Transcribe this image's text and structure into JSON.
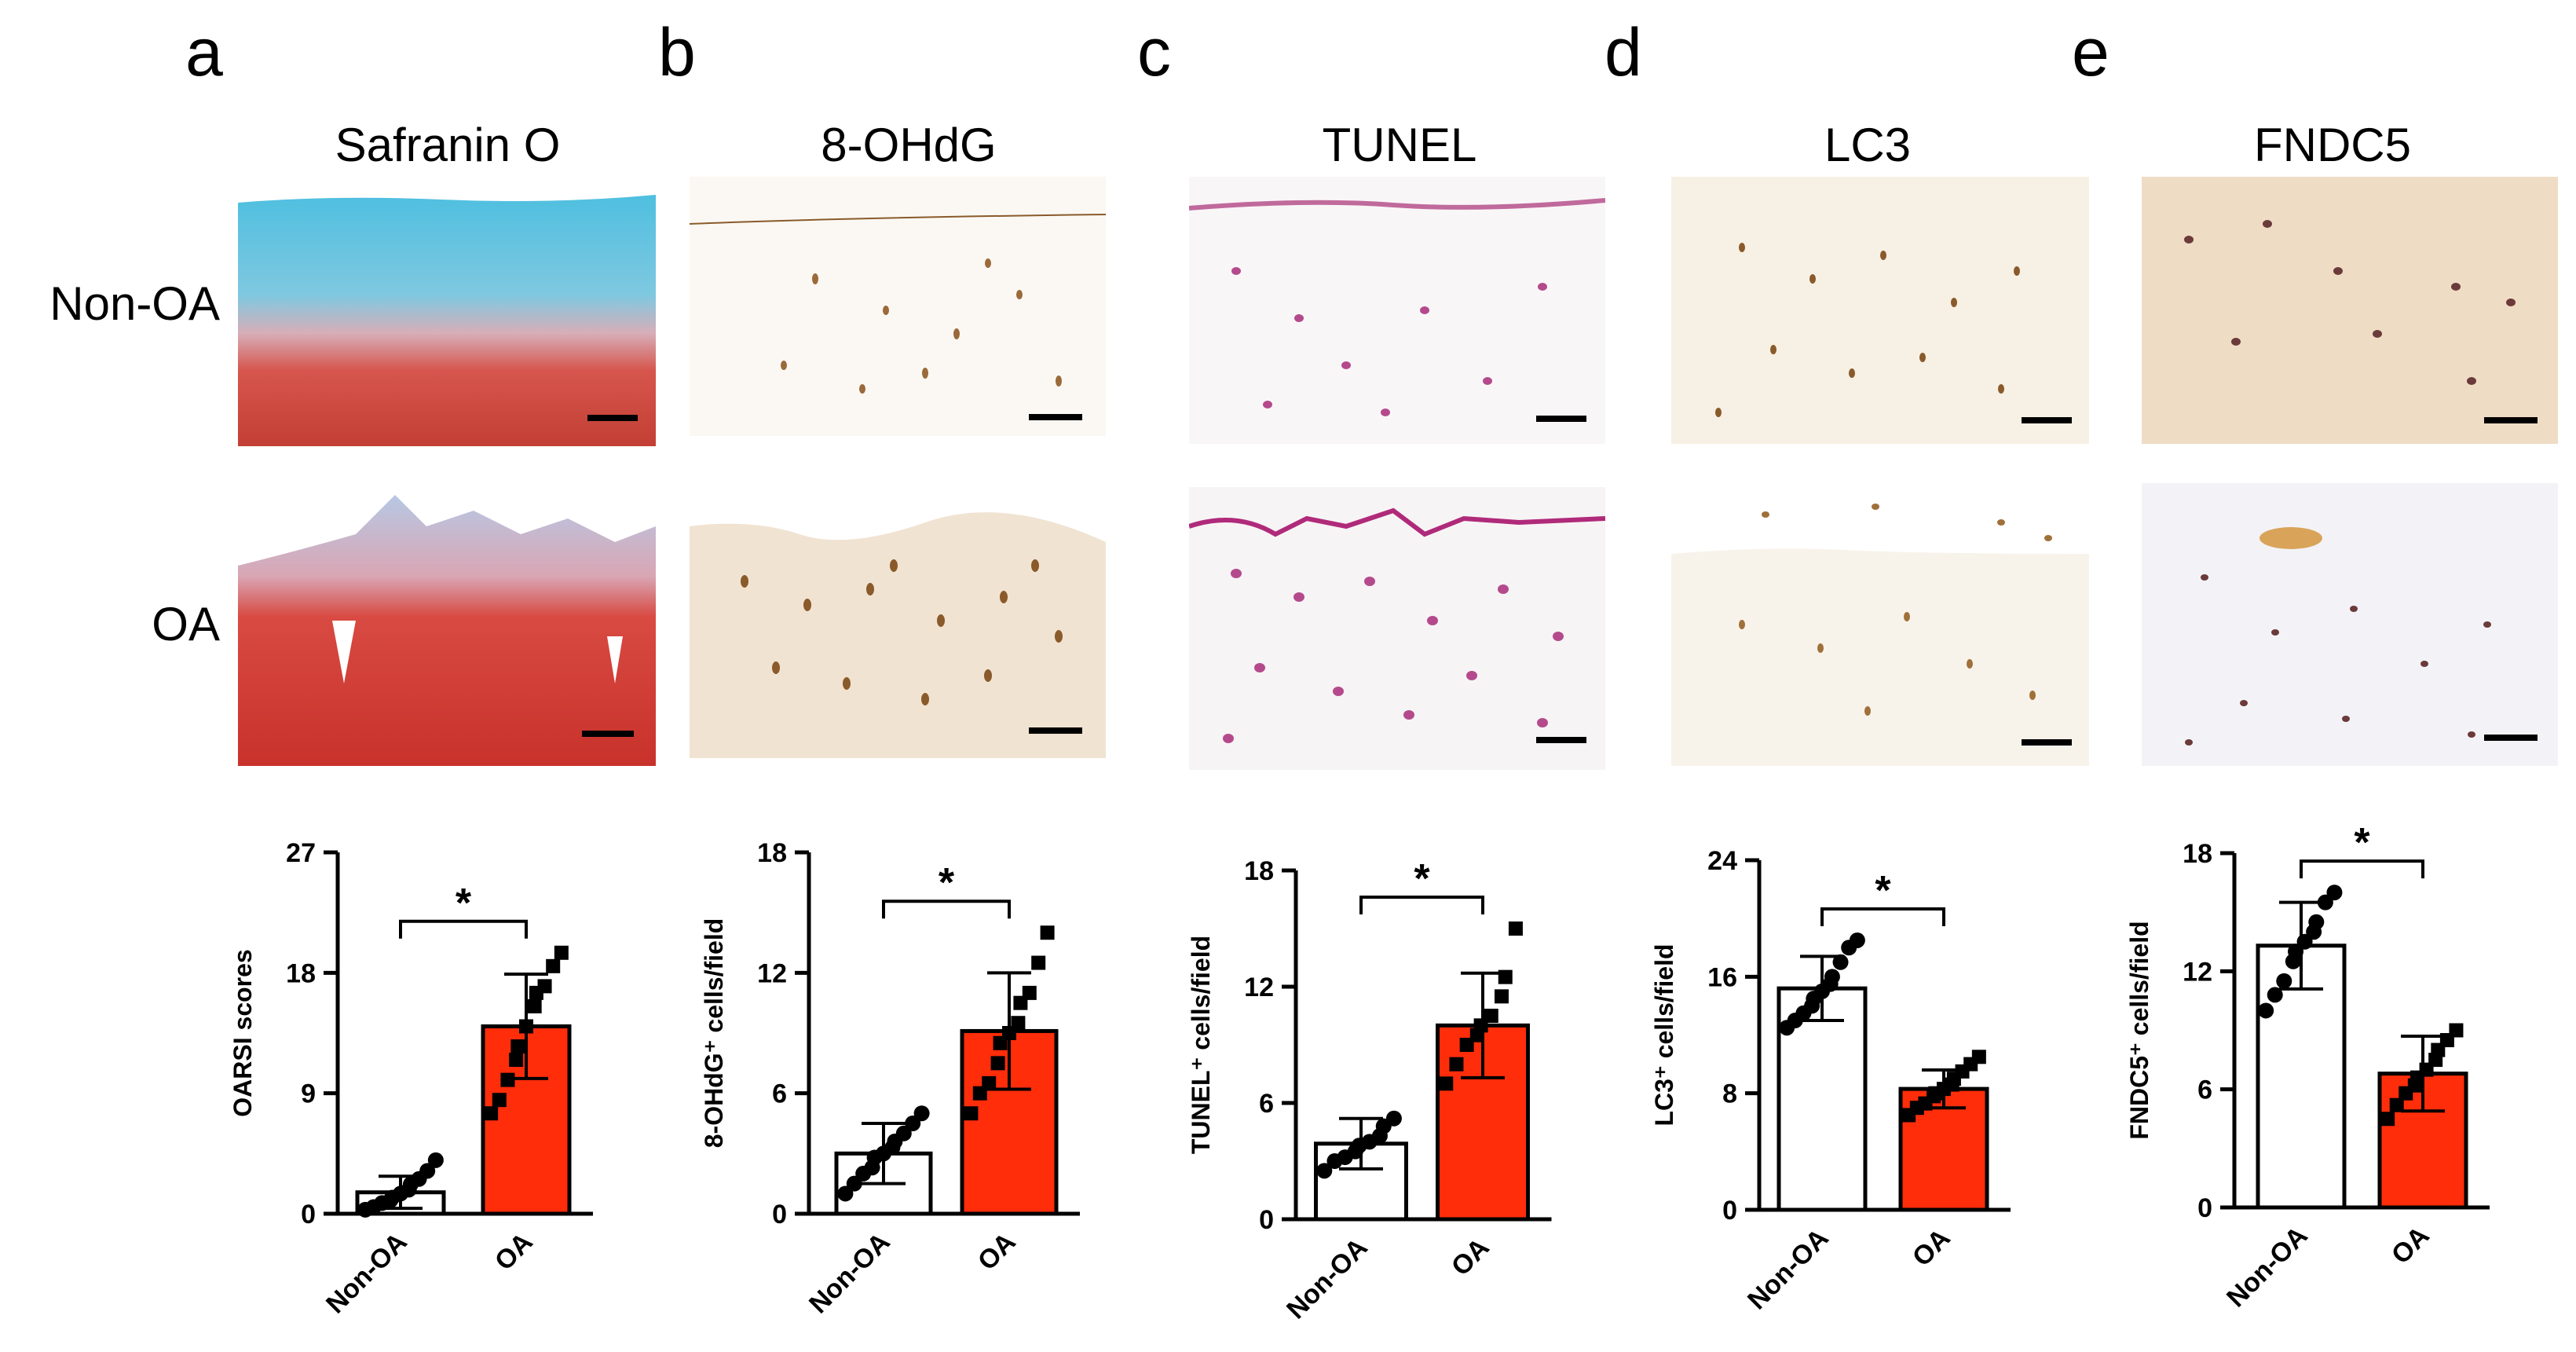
{
  "panels": [
    {
      "letter": "a",
      "stain": "Safranin O"
    },
    {
      "letter": "b",
      "stain": "8-OHdG"
    },
    {
      "letter": "c",
      "stain": "TUNEL"
    },
    {
      "letter": "d",
      "stain": "LC3"
    },
    {
      "letter": "e",
      "stain": "FNDC5"
    }
  ],
  "row_labels": {
    "top": "Non-OA",
    "bottom": "OA"
  },
  "micrograph_colors": {
    "safranin_top": "#5cc4e0",
    "safranin_red": "#c8423a",
    "ihc_background": "#f6f1ea",
    "ihc_cell": "#8a5a2b",
    "tunel_cell": "#b44a8c",
    "scale_bar": "#000000"
  },
  "colors": {
    "non_oa_bar": "#ffffff",
    "oa_bar": "#ff2d0a",
    "point": "#000000"
  },
  "chart_data": [
    {
      "type": "bar",
      "panel": "a",
      "categories": [
        "Non-OA",
        "OA"
      ],
      "values": [
        1.6,
        14.0
      ],
      "errors": [
        1.2,
        3.9
      ],
      "ylabel": "OARSI scores",
      "yticks": [
        "0",
        "9",
        "18",
        "27"
      ],
      "ylim": [
        0,
        27
      ],
      "significance": "*",
      "points": [
        [
          0.3,
          0.5,
          0.8,
          1.0,
          1.2,
          1.5,
          1.8,
          2.2,
          2.6,
          3.2,
          4.0
        ],
        [
          7.5,
          8.5,
          10.0,
          11.5,
          12.5,
          14.0,
          15.5,
          16.5,
          17.0,
          18.5,
          19.5
        ]
      ]
    },
    {
      "type": "bar",
      "panel": "b",
      "categories": [
        "Non-OA",
        "OA"
      ],
      "values": [
        3.0,
        9.1
      ],
      "errors": [
        1.5,
        2.9
      ],
      "ylabel": "8-OHdG⁺ cells/field",
      "yticks": [
        "0",
        "6",
        "12",
        "18"
      ],
      "ylim": [
        0,
        18
      ],
      "significance": "*",
      "points": [
        [
          1.0,
          1.5,
          2.0,
          2.3,
          2.8,
          3.0,
          3.3,
          3.6,
          4.0,
          4.5,
          5.0
        ],
        [
          5.0,
          6.0,
          6.5,
          7.5,
          8.5,
          9.0,
          9.5,
          10.5,
          11.0,
          12.5,
          14.0
        ]
      ]
    },
    {
      "type": "bar",
      "panel": "c",
      "categories": [
        "Non-OA",
        "OA"
      ],
      "values": [
        3.9,
        10.0
      ],
      "errors": [
        1.3,
        2.7
      ],
      "ylabel": "TUNEL⁺ cells/field",
      "yticks": [
        "0",
        "6",
        "12",
        "18"
      ],
      "ylim": [
        0,
        18
      ],
      "significance": "*",
      "points": [
        [
          2.5,
          3.0,
          3.2,
          3.5,
          3.8,
          4.0,
          4.3,
          4.8,
          5.2
        ],
        [
          7.0,
          8.0,
          9.0,
          9.5,
          10.0,
          10.5,
          11.5,
          12.5,
          15.0
        ]
      ]
    },
    {
      "type": "bar",
      "panel": "d",
      "categories": [
        "Non-OA",
        "OA"
      ],
      "values": [
        15.2,
        8.3
      ],
      "errors": [
        2.2,
        1.3
      ],
      "ylabel": "LC3⁺ cells/field",
      "yticks": [
        "0",
        "8",
        "16",
        "24"
      ],
      "ylim": [
        0,
        24
      ],
      "significance": "*",
      "points": [
        [
          12.5,
          13.0,
          13.5,
          14.0,
          14.5,
          15.0,
          15.5,
          16.0,
          17.0,
          18.0,
          18.5
        ],
        [
          6.5,
          7.0,
          7.3,
          7.8,
          8.0,
          8.3,
          8.6,
          9.0,
          9.5,
          10.0,
          10.5
        ]
      ]
    },
    {
      "type": "bar",
      "panel": "e",
      "categories": [
        "Non-OA",
        "OA"
      ],
      "values": [
        13.3,
        6.8
      ],
      "errors": [
        2.2,
        1.9
      ],
      "ylabel": "FNDC5⁺ cells/field",
      "yticks": [
        "0",
        "6",
        "12",
        "18"
      ],
      "ylim": [
        0,
        18
      ],
      "significance": "*",
      "points": [
        [
          10.0,
          10.8,
          11.5,
          12.5,
          13.0,
          13.5,
          14.0,
          14.5,
          15.5,
          16.0
        ],
        [
          4.5,
          5.2,
          5.8,
          6.2,
          6.6,
          7.0,
          7.5,
          8.0,
          8.5,
          9.0
        ]
      ]
    }
  ]
}
